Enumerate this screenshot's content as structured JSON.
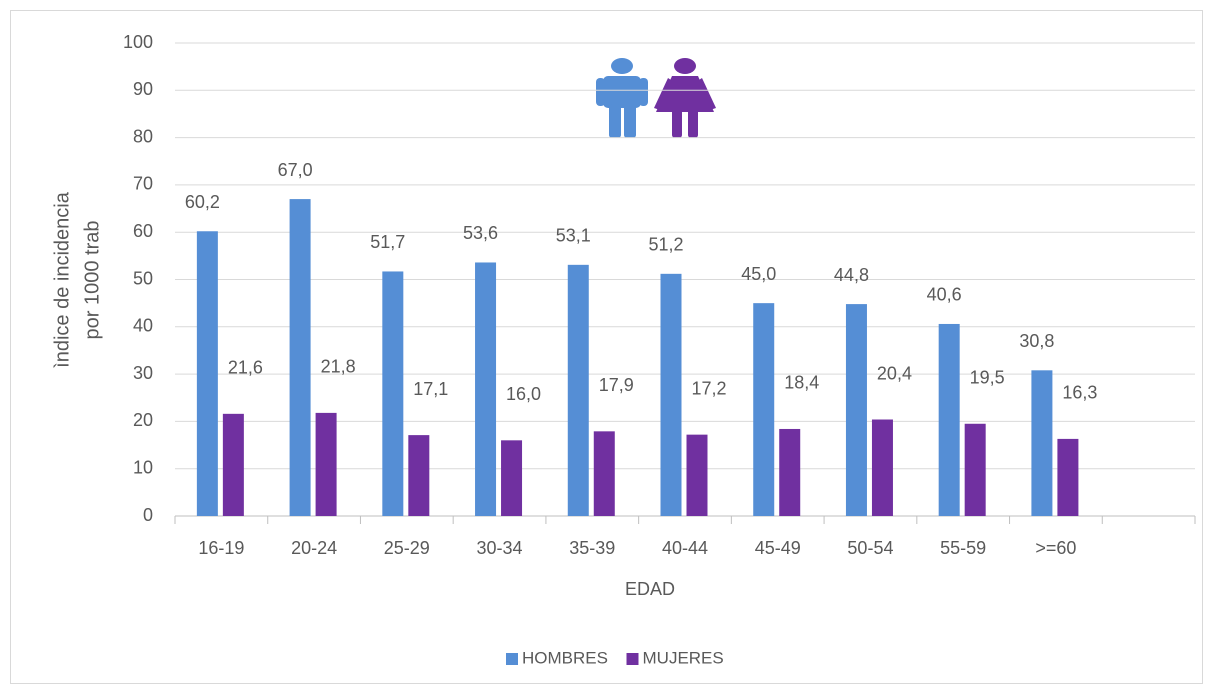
{
  "chart_data": {
    "type": "bar",
    "categories": [
      "16-19",
      "20-24",
      "25-29",
      "30-34",
      "35-39",
      "40-44",
      "45-49",
      "50-54",
      "55-59",
      ">=60",
      null
    ],
    "series": [
      {
        "name": "HOMBRES",
        "color": "#558ed5",
        "values": [
          60.2,
          67.0,
          51.7,
          53.6,
          53.1,
          51.2,
          45.0,
          44.8,
          40.6,
          30.8,
          null
        ],
        "value_labels": [
          "60,2",
          "67,0",
          "51,7",
          "53,6",
          "53,1",
          "51,2",
          "45,0",
          "44,8",
          "40,6",
          "30,8",
          null
        ]
      },
      {
        "name": "MUJERES",
        "color": "#7030a0",
        "values": [
          21.6,
          21.8,
          17.1,
          16.0,
          17.9,
          17.2,
          18.4,
          20.4,
          19.5,
          16.3,
          null
        ],
        "value_labels": [
          "21,6",
          "21,8",
          "17,1",
          "16,0",
          "17,9",
          "17,2",
          "18,4",
          "20,4",
          "19,5",
          "16,3",
          null
        ]
      }
    ],
    "xlabel": "EDAD",
    "ylabel": [
      "ìndice de incidencia",
      "por 1000 trab"
    ],
    "ylim": [
      0,
      100
    ],
    "yticks": [
      0,
      10,
      20,
      30,
      40,
      50,
      60,
      70,
      80,
      90,
      100
    ],
    "grid": true,
    "legend": "bottom"
  }
}
